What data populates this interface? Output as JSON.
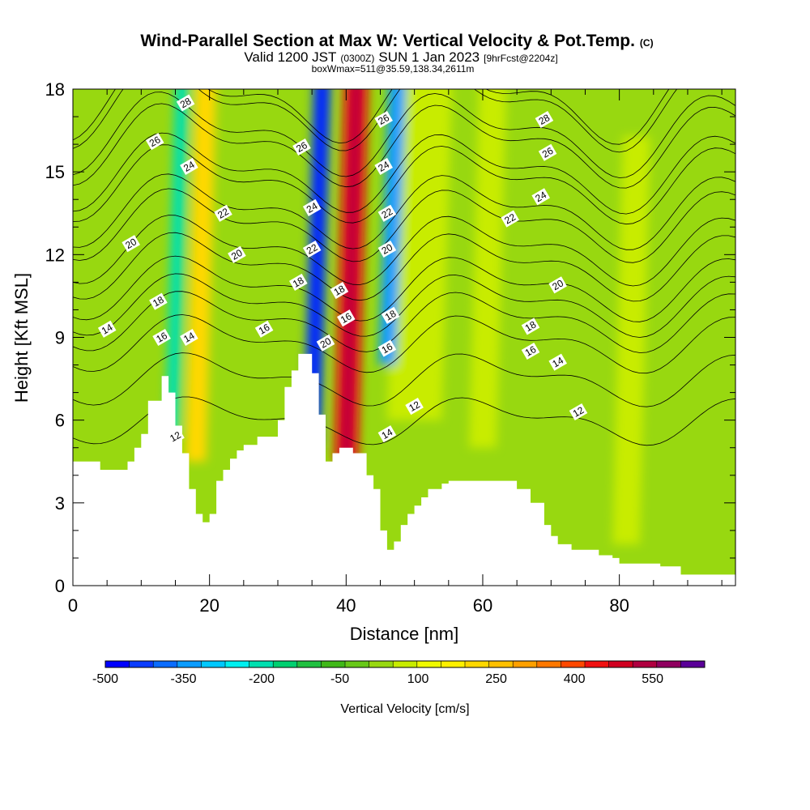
{
  "chart_data": {
    "type": "heatmap",
    "title": "Wind-Parallel Section at Max W: Vertical Velocity & Pot.Temp.",
    "title_mark": "(C)",
    "subtitle_parts": [
      "Valid 1200 JST",
      "(0300Z)",
      "SUN 1 Jan 2023",
      "[9hrFcst@2204z]"
    ],
    "subtitle2": "boxWmax=511@35.59,138.34,2611m",
    "xlabel": "Distance [nm]",
    "ylabel": "Height [Kft MSL]",
    "xlim": [
      0,
      97
    ],
    "ylim": [
      0,
      18
    ],
    "x_ticks": [
      "0",
      "20",
      "40",
      "60",
      "80"
    ],
    "x_tick_values": [
      0,
      20,
      40,
      60,
      80
    ],
    "y_ticks": [
      "0",
      "3",
      "6",
      "9",
      "12",
      "15",
      "18"
    ],
    "y_tick_values": [
      0,
      3,
      6,
      9,
      12,
      15,
      18
    ],
    "colorbar": {
      "label": "Vertical Velocity [cm/s]",
      "tick_labels": [
        "-500",
        "-350",
        "-200",
        "-50",
        "100",
        "250",
        "400",
        "550"
      ],
      "tick_values": [
        -500,
        -350,
        -200,
        -50,
        100,
        250,
        400,
        550
      ],
      "min": -500,
      "max": 650,
      "step": 50,
      "colors": [
        "#0000ff",
        "#0a3cff",
        "#0a6cff",
        "#0a9cff",
        "#00c8ff",
        "#00f0f0",
        "#00e0b0",
        "#00d070",
        "#20c040",
        "#40b818",
        "#68c818",
        "#98d810",
        "#c8ec00",
        "#f0fa00",
        "#fff000",
        "#ffd800",
        "#ffc000",
        "#ffa000",
        "#ff7800",
        "#ff4800",
        "#f01010",
        "#d00020",
        "#b00040",
        "#900060",
        "#5a0098"
      ]
    },
    "updraft_bands_nm": [
      {
        "x": 18,
        "w": 3,
        "top": 18,
        "bottom": 4.5,
        "w_cms": 250
      },
      {
        "x": 40,
        "w": 3.5,
        "top": 18,
        "bottom": 4.5,
        "w_cms": 500
      },
      {
        "x": 50,
        "w": 8,
        "top": 18,
        "bottom": 6,
        "w_cms": 100
      },
      {
        "x": 60,
        "w": 4,
        "top": 18,
        "bottom": 5,
        "w_cms": 100
      },
      {
        "x": 81,
        "w": 4,
        "top": 16,
        "bottom": 1.5,
        "w_cms": 100
      }
    ],
    "downdraft_bands_nm": [
      {
        "x": 14.5,
        "w": 2,
        "top": 18,
        "bottom": 5.5,
        "w_cms": -200
      },
      {
        "x": 35,
        "w": 2.5,
        "top": 18,
        "bottom": 5,
        "w_cms": -450
      },
      {
        "x": 46,
        "w": 2.5,
        "top": 18,
        "bottom": 8,
        "w_cms": -350
      }
    ],
    "terrain": {
      "x_nm": [
        0,
        3,
        4,
        7,
        8,
        9,
        10,
        11,
        12,
        13,
        14,
        15,
        16,
        17,
        18,
        19,
        20,
        21,
        22,
        23,
        24,
        25,
        26,
        27,
        28,
        29,
        30,
        31,
        32,
        33,
        34,
        35,
        36,
        37,
        38,
        39,
        40,
        41,
        42,
        43,
        44,
        45,
        46,
        47,
        48,
        49,
        50,
        51,
        52,
        53,
        54,
        55,
        58,
        60,
        62,
        65,
        67,
        69,
        70,
        71,
        72,
        73,
        75,
        77,
        79,
        80,
        82,
        84,
        86,
        88,
        89,
        93,
        97
      ],
      "height_kft": [
        4.5,
        4.5,
        4.2,
        4.2,
        4.5,
        5.0,
        5.5,
        6.7,
        6.7,
        7.6,
        7.0,
        5.8,
        4.8,
        3.5,
        2.6,
        2.3,
        2.6,
        3.8,
        4.2,
        4.6,
        4.9,
        5.1,
        5.1,
        5.4,
        5.4,
        5.4,
        6.0,
        7.2,
        7.8,
        8.4,
        8.4,
        7.7,
        6.2,
        4.5,
        4.8,
        5.0,
        5.0,
        4.8,
        4.8,
        4.0,
        3.5,
        2.0,
        1.3,
        1.6,
        2.2,
        2.6,
        2.9,
        3.2,
        3.5,
        3.5,
        3.7,
        3.8,
        3.8,
        3.8,
        3.8,
        3.5,
        3.0,
        2.2,
        1.8,
        1.5,
        1.5,
        1.3,
        1.3,
        1.1,
        1.0,
        0.8,
        0.8,
        0.8,
        0.7,
        0.7,
        0.4,
        0.4,
        0.4
      ]
    },
    "potential_temperature_contours": [
      {
        "label": "12",
        "at_nm": [
          15,
          50,
          74
        ],
        "at_kft": [
          5.4,
          6.5,
          6.3
        ]
      },
      {
        "label": "14",
        "at_nm": [
          5,
          17,
          46,
          71
        ],
        "at_kft": [
          9.3,
          9.0,
          5.5,
          8.1
        ]
      },
      {
        "label": "16",
        "at_nm": [
          13,
          28,
          40,
          46,
          67
        ],
        "at_kft": [
          9.0,
          9.3,
          9.7,
          8.6,
          8.5
        ]
      },
      {
        "label": "18",
        "at_nm": [
          12.5,
          33,
          39,
          46.5,
          67
        ],
        "at_kft": [
          10.3,
          11.0,
          10.7,
          9.8,
          9.4
        ]
      },
      {
        "label": "20",
        "at_nm": [
          8.5,
          24,
          37,
          46,
          71
        ],
        "at_kft": [
          12.4,
          12.0,
          8.8,
          12.2,
          10.9
        ]
      },
      {
        "label": "22",
        "at_nm": [
          22,
          35,
          46,
          64
        ],
        "at_kft": [
          13.5,
          12.2,
          13.5,
          13.3
        ]
      },
      {
        "label": "24",
        "at_nm": [
          17,
          35,
          45.5,
          68.5
        ],
        "at_kft": [
          15.2,
          13.7,
          15.2,
          14.1
        ]
      },
      {
        "label": "26",
        "at_nm": [
          12,
          33.5,
          45.5,
          69.5
        ],
        "at_kft": [
          16.1,
          15.9,
          16.9,
          15.7
        ]
      },
      {
        "label": "28",
        "at_nm": [
          16.5,
          69
        ],
        "at_kft": [
          17.5,
          16.9
        ]
      }
    ]
  },
  "colors": {
    "background": "#98d810",
    "terrain_fill": "#ffffff",
    "contour": "#000000",
    "frame": "#000000"
  }
}
